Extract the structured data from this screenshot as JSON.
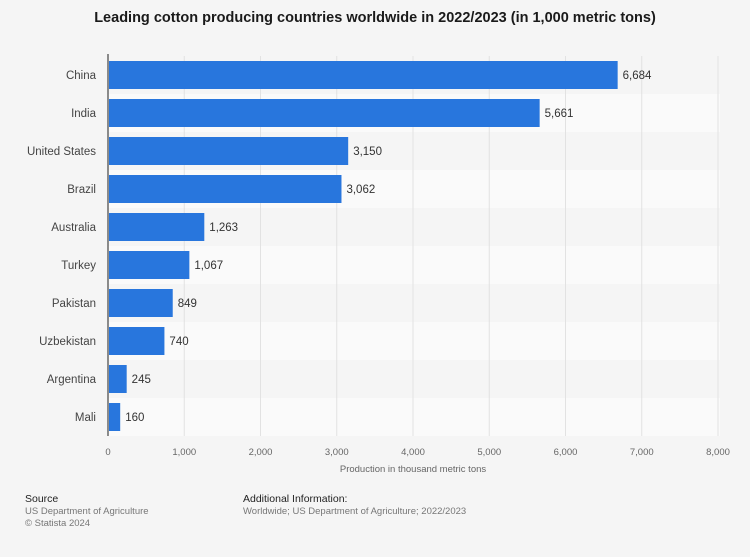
{
  "chart_data": {
    "type": "bar",
    "orientation": "horizontal",
    "title": "Leading cotton producing countries worldwide in 2022/2023 (in 1,000 metric tons)",
    "categories": [
      "China",
      "India",
      "United States",
      "Brazil",
      "Australia",
      "Turkey",
      "Pakistan",
      "Uzbekistan",
      "Argentina",
      "Mali"
    ],
    "values": [
      6684,
      5661,
      3150,
      3062,
      1263,
      1067,
      849,
      740,
      245,
      160
    ],
    "value_labels": [
      "6,684",
      "5,661",
      "3,150",
      "3,062",
      "1,263",
      "1,067",
      "849",
      "740",
      "245",
      "160"
    ],
    "xlabel": "Production in thousand metric tons",
    "ylabel": "",
    "xlim": [
      0,
      8000
    ],
    "xticks": [
      0,
      1000,
      2000,
      3000,
      4000,
      5000,
      6000,
      7000,
      8000
    ],
    "xtick_labels": [
      "0",
      "1,000",
      "2,000",
      "3,000",
      "4,000",
      "5,000",
      "6,000",
      "7,000",
      "8,000"
    ],
    "grid": true,
    "bar_color": "#2876dd"
  },
  "footer": {
    "source_heading": "Source",
    "source_text": "US Department of Agriculture",
    "copyright": "© Statista 2024",
    "info_heading": "Additional Information:",
    "info_text": "Worldwide; US Department of Agriculture; 2022/2023"
  }
}
